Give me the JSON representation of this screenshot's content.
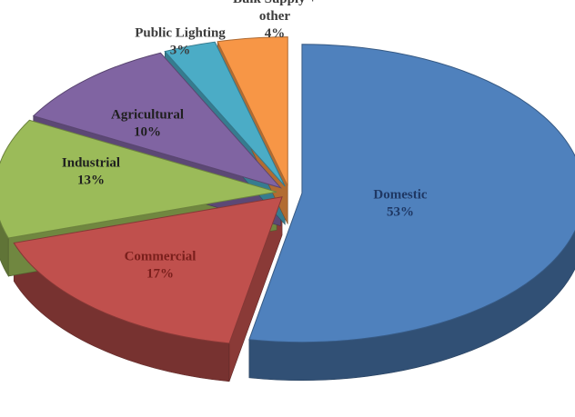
{
  "chart_data": {
    "type": "pie",
    "style": "3d-exploded",
    "slices": [
      {
        "name": "Domestic",
        "value": 53,
        "label": "53%",
        "color": "#4f81bd"
      },
      {
        "name": "Commercial",
        "value": 17,
        "label": "17%",
        "color": "#c0504d"
      },
      {
        "name": "Industrial",
        "value": 13,
        "label": "13%",
        "color": "#9bbb59"
      },
      {
        "name": "Agricultural",
        "value": 10,
        "label": "10%",
        "color": "#8064a2"
      },
      {
        "name": "Public Lighting",
        "value": 3,
        "label": "3%",
        "color": "#4bacc6"
      },
      {
        "name": "Bulk Supply + other",
        "value": 4,
        "label": "4%",
        "color": "#f79646"
      }
    ],
    "label_color_dark": "#1f3864",
    "label_color_inside": "#7a1f1c",
    "label_color_outside": "#3b3b3b",
    "legend": "none"
  }
}
